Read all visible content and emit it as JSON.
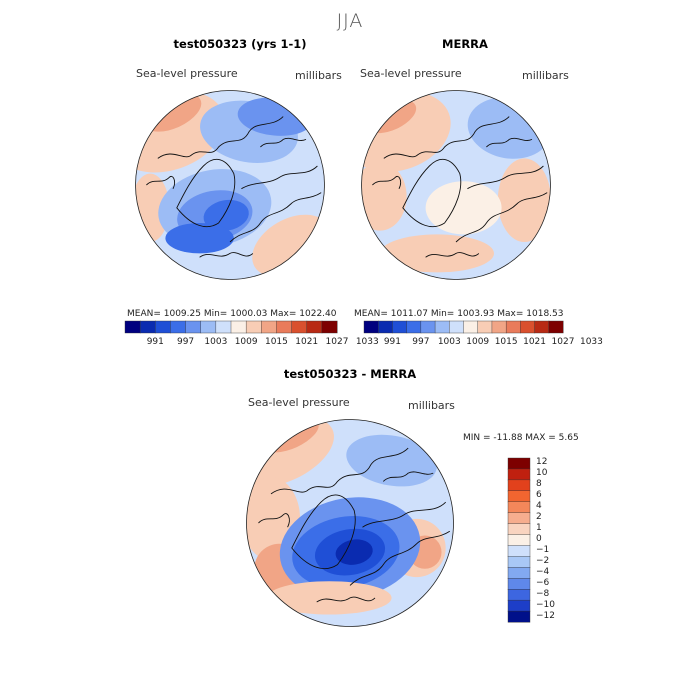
{
  "title": "JJA",
  "panels": [
    {
      "title": "test050323 (yrs 1-1)",
      "variable": "Sea-level pressure",
      "units": "millibars",
      "stats": {
        "mean": "1009.25",
        "min": "1000.03",
        "max": "1022.40"
      },
      "stats_text": "MEAN= 1009.25   Min= 1000.03   Max= 1022.40"
    },
    {
      "title": "MERRA",
      "variable": "Sea-level pressure",
      "units": "millibars",
      "stats": {
        "mean": "1011.07",
        "min": "1003.93",
        "max": "1018.53"
      },
      "stats_text": "MEAN= 1011.07   Min= 1003.93   Max= 1018.53"
    },
    {
      "title": "test050323 - MERRA",
      "variable": "Sea-level pressure",
      "units": "millibars",
      "stats": {
        "min": "-11.88",
        "max": "5.65"
      },
      "stats_text": "MIN = -11.88  MAX =   5.65"
    }
  ],
  "abs_colorbar": {
    "colors": [
      "#00007f",
      "#0a2bb0",
      "#1f4fd6",
      "#3b6ee8",
      "#6a93ef",
      "#9cbcf5",
      "#cfe0fb",
      "#fbf0e6",
      "#f8cdb5",
      "#f1a586",
      "#e97b5b",
      "#d9502e",
      "#b82a14",
      "#7d0000"
    ],
    "labels": [
      "991",
      "997",
      "1003",
      "1009",
      "1015",
      "1021",
      "1027",
      "1033"
    ]
  },
  "diff_colorbar": {
    "colors": [
      "#7d0000",
      "#c0200f",
      "#e2411c",
      "#f26530",
      "#f4875a",
      "#f6ad8e",
      "#f9d4c0",
      "#fbf0e6",
      "#cfe0fb",
      "#a9c8f6",
      "#82a9f1",
      "#5f88ea",
      "#3d66e0",
      "#1d3ec8",
      "#00108a"
    ],
    "labels": [
      "12",
      "10",
      "8",
      "6",
      "4",
      "2",
      "1",
      "0",
      "-1",
      "-2",
      "-4",
      "-6",
      "-8",
      "-10",
      "-12"
    ]
  },
  "colors": {
    "ocean_warm": "#f8cdb5",
    "ocean_warmer": "#f1a586",
    "neutral": "#fbf0e6",
    "cool_light": "#cfe0fb",
    "cool_mid": "#9cbcf5",
    "cool": "#6a93ef",
    "cool_strong": "#3b6ee8",
    "cool_deep": "#1f4fd6",
    "coast": "#111111"
  }
}
